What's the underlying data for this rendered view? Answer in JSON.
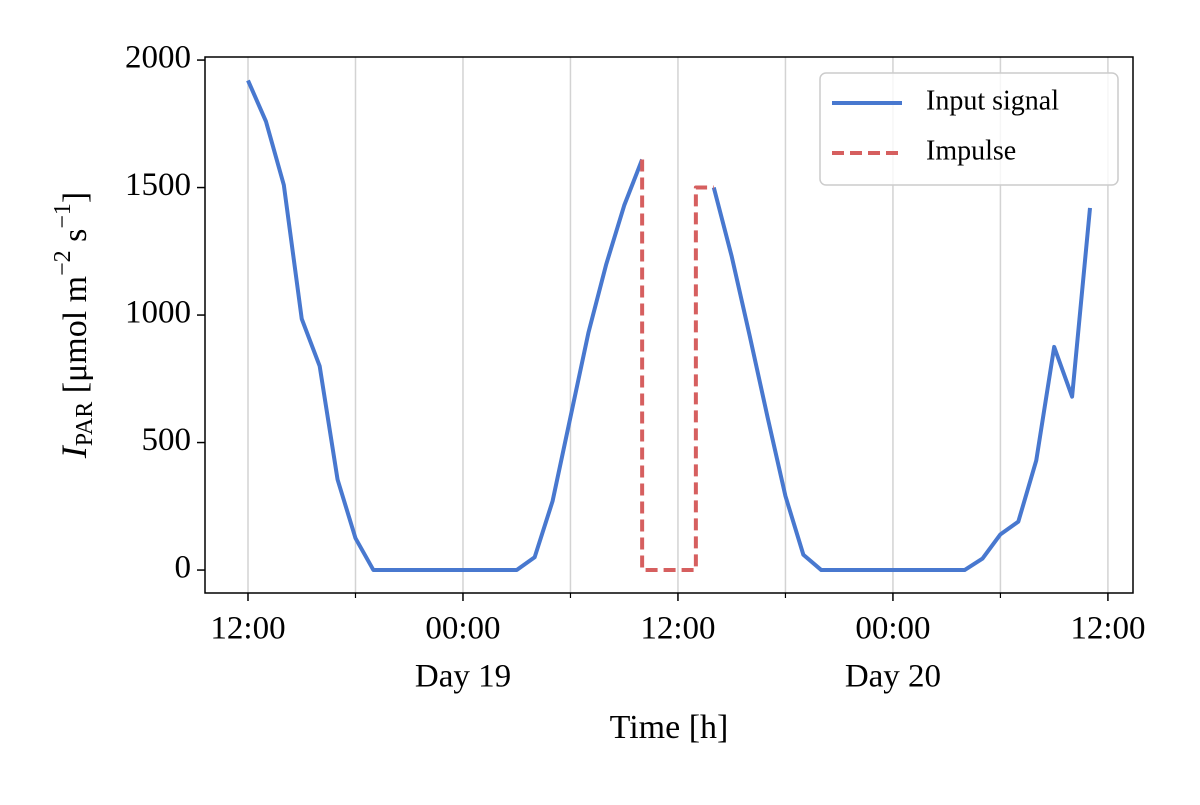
{
  "chart_data": {
    "type": "line",
    "xlabel": "Time [h]",
    "ylabel_parts": [
      "I",
      "PAR",
      " [μmol m",
      "−2",
      " s",
      "−1",
      "]"
    ],
    "xlim": [
      -2.4,
      49.4
    ],
    "ylim": [
      -90,
      2012
    ],
    "xticks": [
      {
        "value": 0,
        "label": "12:00"
      },
      {
        "value": 12,
        "label": "00:00"
      },
      {
        "value": 24,
        "label": "12:00"
      },
      {
        "value": 36,
        "label": "00:00"
      },
      {
        "value": 48,
        "label": "12:00"
      }
    ],
    "minor_xticks": [
      6,
      18,
      30,
      42
    ],
    "day_labels": [
      {
        "value": 12,
        "label": "Day 19"
      },
      {
        "value": 36,
        "label": "Day 20"
      }
    ],
    "yticks": [
      0,
      500,
      1000,
      1500,
      2000
    ],
    "grid": true,
    "legend": "upper right",
    "series": [
      {
        "name": "Input signal",
        "color": "#4878cf",
        "style": "solid",
        "x": [
          0,
          1,
          2,
          3,
          4,
          5,
          6,
          7,
          8,
          9,
          10,
          11,
          12,
          13,
          14,
          15,
          16,
          17,
          18,
          19,
          20,
          21,
          22,
          23,
          24,
          25,
          26,
          27,
          28,
          29,
          30,
          31,
          32,
          33,
          34,
          35,
          36,
          37,
          38,
          39,
          40,
          41,
          42,
          43,
          44,
          45,
          46,
          47
        ],
        "values": [
          1920,
          1760,
          1510,
          985,
          800,
          355,
          125,
          0,
          0,
          0,
          0,
          0,
          0,
          0,
          0,
          0,
          50,
          270,
          600,
          930,
          1200,
          1430,
          1610,
          null,
          null,
          null,
          1500,
          1230,
          920,
          600,
          290,
          60,
          0,
          0,
          0,
          0,
          0,
          0,
          0,
          0,
          0,
          45,
          140,
          190,
          430,
          875,
          680,
          1420
        ]
      },
      {
        "name": "Impulse",
        "color": "#d65f5f",
        "style": "dashed",
        "x": [
          22,
          22,
          25,
          25,
          26
        ],
        "values": [
          1610,
          0,
          0,
          1500,
          1500
        ]
      }
    ]
  }
}
